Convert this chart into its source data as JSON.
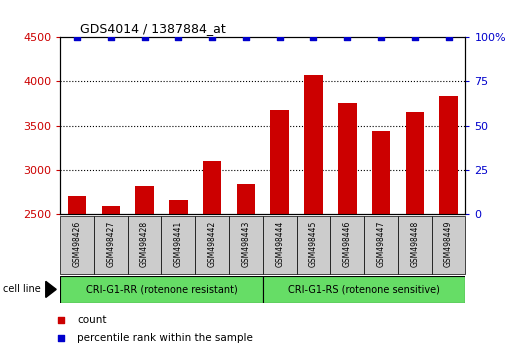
{
  "title": "GDS4014 / 1387884_at",
  "samples": [
    "GSM498426",
    "GSM498427",
    "GSM498428",
    "GSM498441",
    "GSM498442",
    "GSM498443",
    "GSM498444",
    "GSM498445",
    "GSM498446",
    "GSM498447",
    "GSM498448",
    "GSM498449"
  ],
  "counts": [
    2700,
    2590,
    2820,
    2660,
    3100,
    2840,
    3680,
    4070,
    3760,
    3440,
    3660,
    3840
  ],
  "percentile_ranks": [
    100,
    100,
    100,
    100,
    100,
    100,
    100,
    100,
    100,
    100,
    100,
    100
  ],
  "bar_color": "#cc0000",
  "dot_color": "#0000cc",
  "ylim_left": [
    2500,
    4500
  ],
  "ylim_right": [
    0,
    100
  ],
  "yticks_left": [
    2500,
    3000,
    3500,
    4000,
    4500
  ],
  "yticks_right": [
    0,
    25,
    50,
    75,
    100
  ],
  "yticks_right_labels": [
    "0",
    "25",
    "50",
    "75",
    "100%"
  ],
  "group1_label": "CRI-G1-RR (rotenone resistant)",
  "group2_label": "CRI-G1-RS (rotenone sensitive)",
  "group1_count": 6,
  "group2_count": 6,
  "cell_line_label": "cell line",
  "legend_count_label": "count",
  "legend_pct_label": "percentile rank within the sample",
  "group_bg_color": "#66dd66",
  "tick_label_area_color": "#cccccc",
  "right_axis_label_color": "#0000cc",
  "left_axis_label_color": "#cc0000",
  "title_color": "#000000",
  "dot_size": 25,
  "gridline_values": [
    3000,
    3500,
    4000
  ],
  "bar_width": 0.55
}
